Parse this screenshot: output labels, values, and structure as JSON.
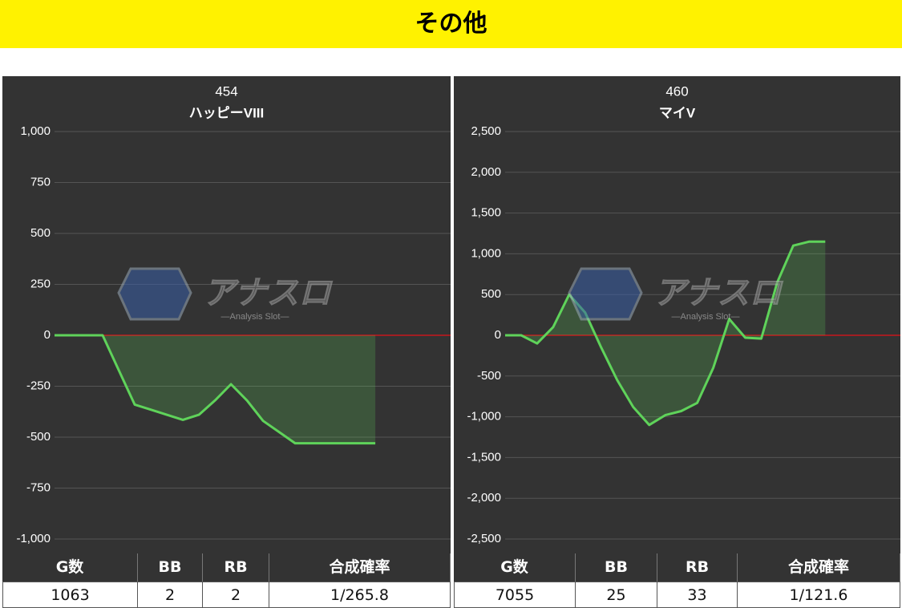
{
  "header": {
    "title": "その他"
  },
  "chart_data": [
    {
      "type": "line",
      "title": "454",
      "subtitle": "ハッピーVIII",
      "color": "#5fd35a",
      "fill": true,
      "grid": true,
      "zero_line_color": "#c8161d",
      "values": [
        0,
        0,
        0,
        0,
        -170,
        -340,
        -365,
        -390,
        -415,
        -390,
        -320,
        -240,
        -320,
        -420,
        -475,
        -530,
        -530,
        -530,
        -530,
        -530,
        -530
      ],
      "ylim": [
        -1000,
        1000
      ],
      "yticks": [
        {
          "value": -1000,
          "label": "-1,000"
        },
        -750,
        -500,
        -250,
        0,
        250,
        500,
        750,
        {
          "value": 1000,
          "label": "1,000"
        }
      ]
    },
    {
      "type": "line",
      "title": "460",
      "subtitle": "マイV",
      "color": "#5fd35a",
      "fill": true,
      "grid": true,
      "zero_line_color": "#c8161d",
      "values": [
        0,
        0,
        -100,
        100,
        500,
        280,
        -150,
        -550,
        -880,
        -1100,
        -980,
        -930,
        -830,
        -400,
        200,
        -30,
        -40,
        650,
        1100,
        1150,
        1150
      ],
      "ylim": [
        -2500,
        2500
      ],
      "yticks": [
        {
          "value": -2500,
          "label": "-2,500"
        },
        {
          "value": -2000,
          "label": "-2,000"
        },
        {
          "value": -1500,
          "label": "-1,500"
        },
        {
          "value": -1000,
          "label": "-1,000"
        },
        -500,
        0,
        500,
        {
          "value": 1000,
          "label": "1,000"
        },
        {
          "value": 1500,
          "label": "1,500"
        },
        {
          "value": 2000,
          "label": "2,000"
        },
        {
          "value": 2500,
          "label": "2,500"
        }
      ]
    }
  ],
  "tables": [
    {
      "header": [
        "G数",
        "BB",
        "RB",
        "合成確率"
      ],
      "row": [
        "1063",
        "2",
        "2",
        "1/265.8"
      ]
    },
    {
      "header": [
        "G数",
        "BB",
        "RB",
        "合成確率"
      ],
      "row": [
        "7055",
        "25",
        "33",
        "1/121.6"
      ]
    }
  ],
  "watermark": {
    "logo": "アナスロ",
    "tagline": "—Analysis Slot—"
  }
}
